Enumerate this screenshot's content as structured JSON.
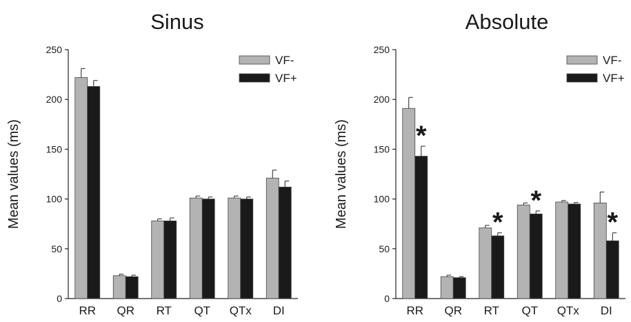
{
  "colors": {
    "vf_minus": "#b3b3b3",
    "vf_plus": "#1a1a1a",
    "axis": "#222222"
  },
  "chart_data": [
    {
      "type": "bar",
      "title": "Sinus",
      "ylabel": "Mean values (ms)",
      "xlabel": "",
      "ylim": [
        0,
        250
      ],
      "yticks": [
        0,
        50,
        100,
        150,
        200,
        250
      ],
      "categories": [
        "RR",
        "QR",
        "RT",
        "QT",
        "QTx",
        "DI"
      ],
      "legend_position": "top-right",
      "series": [
        {
          "name": "VF-",
          "values": [
            222,
            23,
            78,
            101,
            101,
            121
          ],
          "errors": [
            9,
            1.5,
            2,
            2,
            2,
            8
          ]
        },
        {
          "name": "VF+",
          "values": [
            213,
            22,
            78,
            100,
            100,
            112
          ],
          "errors": [
            6,
            1.5,
            3,
            2,
            2,
            6
          ]
        }
      ],
      "significant": []
    },
    {
      "type": "bar",
      "title": "Absolute",
      "ylabel": "Mean values (ms)",
      "xlabel": "",
      "ylim": [
        0,
        250
      ],
      "yticks": [
        0,
        50,
        100,
        150,
        200,
        250
      ],
      "categories": [
        "RR",
        "QR",
        "RT",
        "QT",
        "QTx",
        "DI"
      ],
      "legend_position": "top-right",
      "series": [
        {
          "name": "VF-",
          "values": [
            191,
            22,
            71,
            94,
            97,
            96
          ],
          "errors": [
            11,
            1.5,
            2.5,
            2,
            1.5,
            11
          ]
        },
        {
          "name": "VF+",
          "values": [
            143,
            21,
            63,
            85,
            95,
            58
          ],
          "errors": [
            10,
            1,
            3,
            3,
            1.5,
            8
          ]
        }
      ],
      "significant": [
        {
          "category": "RR",
          "label": "*"
        },
        {
          "category": "RT",
          "label": "*"
        },
        {
          "category": "QT",
          "label": "*"
        },
        {
          "category": "DI",
          "label": "*"
        }
      ]
    }
  ]
}
